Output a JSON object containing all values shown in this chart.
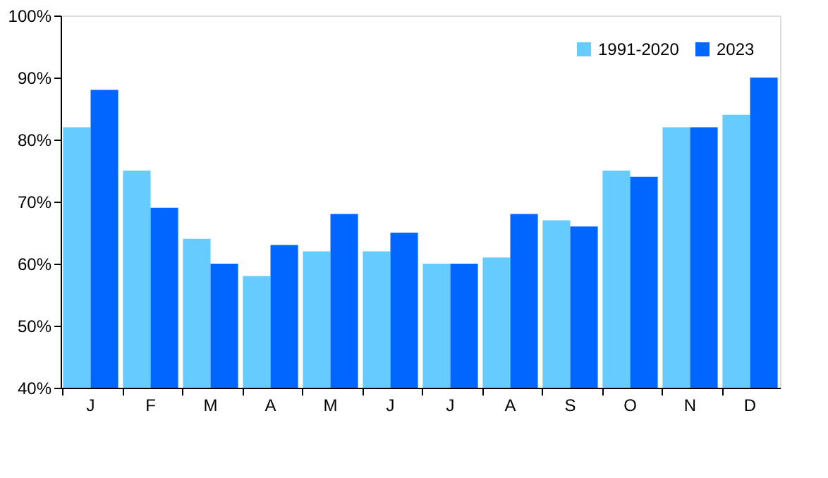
{
  "chart_data": {
    "type": "bar",
    "categories": [
      "J",
      "F",
      "M",
      "A",
      "M",
      "J",
      "J",
      "A",
      "S",
      "O",
      "N",
      "D"
    ],
    "series": [
      {
        "name": "1991-2020",
        "color": "#66ccff",
        "values": [
          82,
          75,
          64,
          58,
          62,
          62,
          60,
          61,
          67,
          75,
          82,
          84
        ]
      },
      {
        "name": "2023",
        "color": "#0066ff",
        "values": [
          88,
          69,
          60,
          63,
          68,
          65,
          60,
          68,
          66,
          74,
          82,
          90
        ]
      }
    ],
    "ylim": [
      40,
      100
    ],
    "yticks": [
      {
        "value": 40,
        "label": "40%"
      },
      {
        "value": 50,
        "label": "50%"
      },
      {
        "value": 60,
        "label": "60%"
      },
      {
        "value": 70,
        "label": "70%"
      },
      {
        "value": 80,
        "label": "80%"
      },
      {
        "value": 90,
        "label": "90%"
      },
      {
        "value": 100,
        "label": "100%"
      }
    ],
    "grid": false,
    "legend": "top right"
  }
}
